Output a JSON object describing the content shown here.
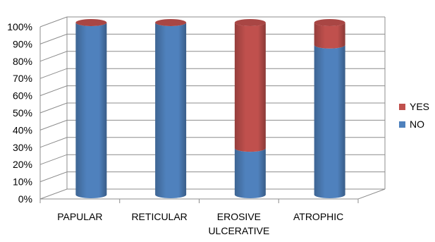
{
  "chart_data": {
    "type": "bar",
    "stacked": true,
    "style": "3d-cylinder",
    "categories": [
      "PAPULAR",
      "RETICULAR",
      "EROSIVE\nULCERATIVE",
      "ATROPHIC"
    ],
    "series": [
      {
        "name": "NO",
        "values": [
          100,
          100,
          27,
          87
        ],
        "color": "#4F81BD"
      },
      {
        "name": "YES",
        "values": [
          0,
          0,
          73,
          13
        ],
        "color": "#C0504D"
      }
    ],
    "title": "",
    "xlabel": "",
    "ylabel": "",
    "ylim": [
      0,
      100
    ],
    "yticks": [
      "0%",
      "10%",
      "20%",
      "30%",
      "40%",
      "50%",
      "60%",
      "70%",
      "80%",
      "90%",
      "100%"
    ],
    "grid": true,
    "legend": {
      "position": "right",
      "order": [
        "YES",
        "NO"
      ]
    }
  }
}
